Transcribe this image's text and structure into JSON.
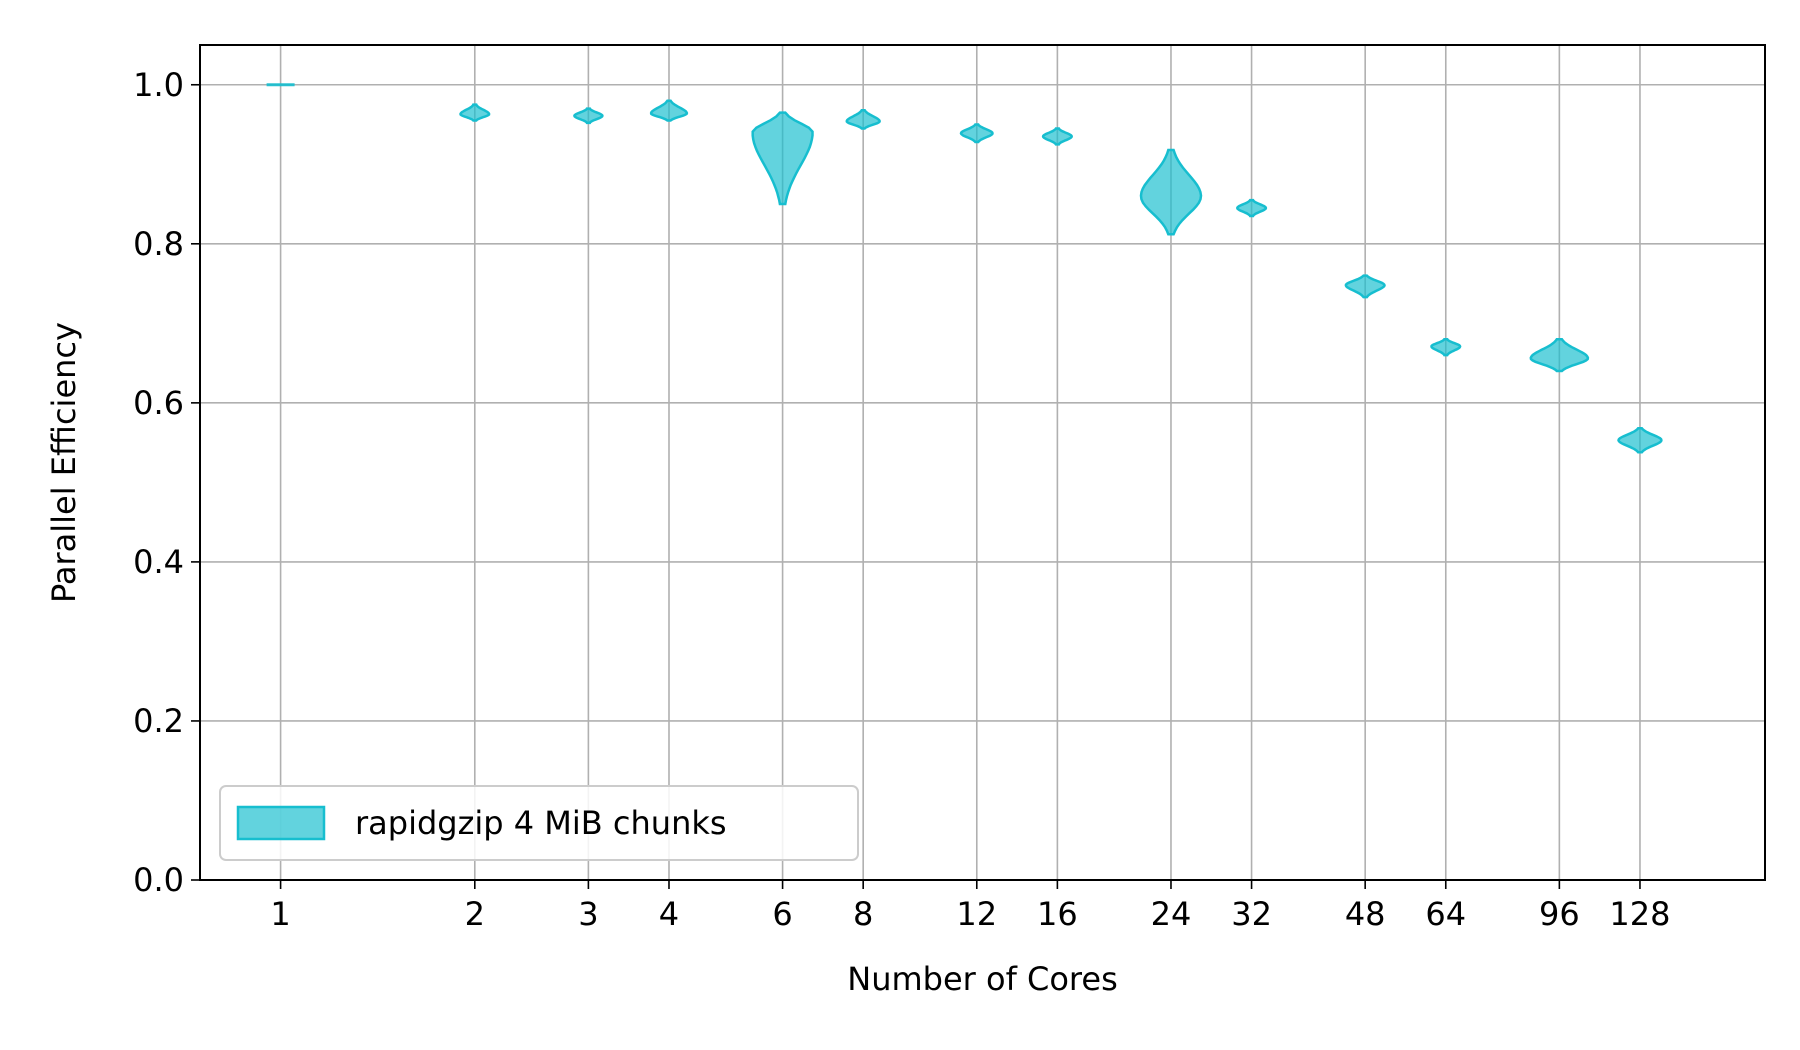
{
  "chart_data": {
    "type": "violin",
    "x_scale": "log2",
    "xlabel": "Number of Cores",
    "ylabel": "Parallel Efficiency",
    "ylim": [
      0.0,
      1.05
    ],
    "xlim": [
      0.75,
      200
    ],
    "grid": true,
    "legend_position": "lower-left",
    "x_ticks": [
      {
        "value": 1,
        "label": "1"
      },
      {
        "value": 2,
        "label": "2"
      },
      {
        "value": 3,
        "label": "3"
      },
      {
        "value": 4,
        "label": "4"
      },
      {
        "value": 6,
        "label": "6"
      },
      {
        "value": 8,
        "label": "8"
      },
      {
        "value": 12,
        "label": "12"
      },
      {
        "value": 16,
        "label": "16"
      },
      {
        "value": 24,
        "label": "24"
      },
      {
        "value": 32,
        "label": "32"
      },
      {
        "value": 48,
        "label": "48"
      },
      {
        "value": 64,
        "label": "64"
      },
      {
        "value": 96,
        "label": "96"
      },
      {
        "value": 128,
        "label": "128"
      }
    ],
    "y_ticks": [
      {
        "value": 0.0,
        "label": "0.0"
      },
      {
        "value": 0.2,
        "label": "0.2"
      },
      {
        "value": 0.4,
        "label": "0.4"
      },
      {
        "value": 0.6,
        "label": "0.6"
      },
      {
        "value": 0.8,
        "label": "0.8"
      },
      {
        "value": 1.0,
        "label": "1.0"
      }
    ],
    "series": [
      {
        "name": "rapidgzip 4 MiB chunks",
        "color": "#17becf",
        "violins": [
          {
            "x": 1,
            "min": 1.0,
            "max": 1.001,
            "median": 1.0
          },
          {
            "x": 2,
            "min": 0.955,
            "max": 0.975,
            "median": 0.963
          },
          {
            "x": 3,
            "min": 0.952,
            "max": 0.97,
            "median": 0.961
          },
          {
            "x": 4,
            "min": 0.955,
            "max": 0.98,
            "median": 0.964
          },
          {
            "x": 6,
            "min": 0.85,
            "max": 0.965,
            "median": 0.94
          },
          {
            "x": 8,
            "min": 0.945,
            "max": 0.968,
            "median": 0.954
          },
          {
            "x": 12,
            "min": 0.928,
            "max": 0.95,
            "median": 0.939
          },
          {
            "x": 16,
            "min": 0.925,
            "max": 0.945,
            "median": 0.935
          },
          {
            "x": 24,
            "min": 0.812,
            "max": 0.918,
            "median": 0.86
          },
          {
            "x": 32,
            "min": 0.835,
            "max": 0.855,
            "median": 0.845
          },
          {
            "x": 48,
            "min": 0.733,
            "max": 0.76,
            "median": 0.748
          },
          {
            "x": 64,
            "min": 0.66,
            "max": 0.68,
            "median": 0.671
          },
          {
            "x": 96,
            "min": 0.64,
            "max": 0.68,
            "median": 0.656
          },
          {
            "x": 128,
            "min": 0.538,
            "max": 0.568,
            "median": 0.553
          }
        ]
      }
    ]
  }
}
